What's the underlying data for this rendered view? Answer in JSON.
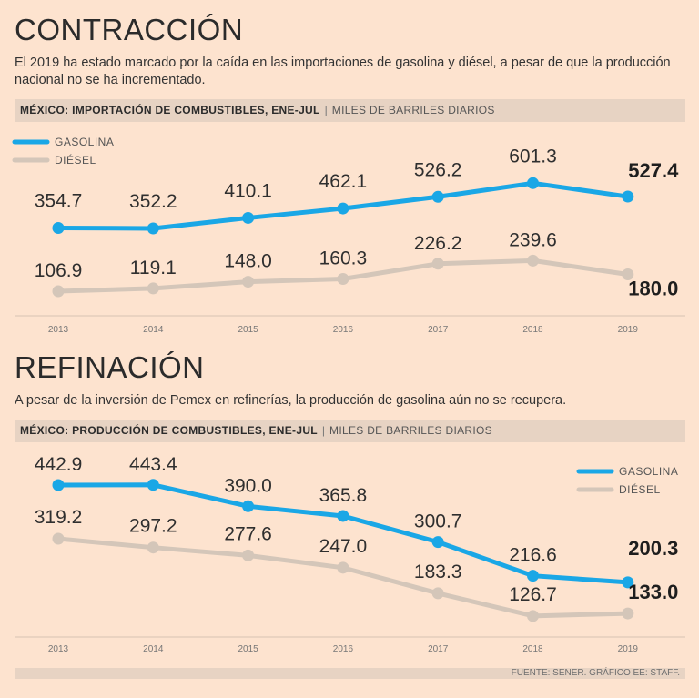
{
  "colors": {
    "gasolina": "#1aa7e6",
    "diesel": "#d4c6b9",
    "background": "#fde3cf",
    "band": "#e7d3c3"
  },
  "sections": [
    {
      "title": "CONTRACCIÓN",
      "subtitle": "El 2019 ha estado marcado por la caída en las importaciones de gasolina y diésel, a pesar de que la producción nacional no se ha incrementado.",
      "header_bold": "MÉXICO: IMPORTACIÓN DE COMBUSTIBLES, ENE-JUL",
      "header_unit": "MILES DE BARRILES DIARIOS"
    },
    {
      "title": "REFINACIÓN",
      "subtitle": "A pesar de la inversión de Pemex en refinerías, la producción de gasolina aún no se recupera.",
      "header_bold": "MÉXICO: PRODUCCIÓN DE COMBUSTIBLES, ENE-JUL",
      "header_unit": "MILES DE BARRILES DIARIOS"
    }
  ],
  "chart_data": [
    {
      "type": "line",
      "title": "MÉXICO: IMPORTACIÓN DE COMBUSTIBLES, ENE-JUL",
      "ylabel": "MILES DE BARRILES DIARIOS",
      "x": [
        "2013",
        "2014",
        "2015",
        "2016",
        "2017",
        "2018",
        "2019"
      ],
      "legend_position": "top-left",
      "series": [
        {
          "name": "GASOLINA",
          "color_key": "gasolina",
          "values": [
            354.7,
            352.2,
            410.1,
            462.1,
            526.2,
            601.3,
            527.4
          ],
          "labels": [
            "354.7",
            "352.2",
            "410.1",
            "462.1",
            "526.2",
            "601.3",
            "527.4"
          ]
        },
        {
          "name": "DIÉSEL",
          "color_key": "diesel",
          "values": [
            106.9,
            119.1,
            148.0,
            160.3,
            226.2,
            239.6,
            180.0
          ],
          "labels": [
            "106.9",
            "119.1",
            "148.0",
            "160.3",
            "226.2",
            "239.6",
            "180.0"
          ]
        }
      ]
    },
    {
      "type": "line",
      "title": "MÉXICO: PRODUCCIÓN DE COMBUSTIBLES, ENE-JUL",
      "ylabel": "MILES DE BARRILES DIARIOS",
      "x": [
        "2013",
        "2014",
        "2015",
        "2016",
        "2017",
        "2018",
        "2019"
      ],
      "legend_position": "top-right",
      "series": [
        {
          "name": "GASOLINA",
          "color_key": "gasolina",
          "values": [
            442.9,
            443.4,
            390.0,
            365.8,
            300.7,
            216.6,
            200.3
          ],
          "labels": [
            "442.9",
            "443.4",
            "390.0",
            "365.8",
            "300.7",
            "216.6",
            "200.3"
          ]
        },
        {
          "name": "DIÉSEL",
          "color_key": "diesel",
          "values": [
            319.2,
            297.2,
            277.6,
            247.0,
            183.3,
            126.7,
            133.0
          ],
          "labels": [
            "319.2",
            "297.2",
            "277.6",
            "247.0",
            "183.3",
            "126.7",
            "133.0"
          ]
        }
      ]
    }
  ],
  "footer": "FUENTE: SENER. GRÁFICO EE: STAFF."
}
